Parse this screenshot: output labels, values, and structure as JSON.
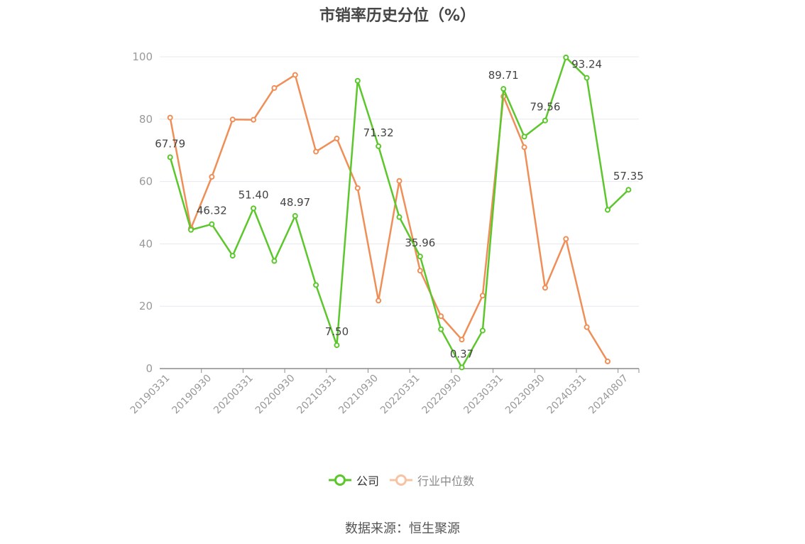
{
  "title": "市销率历史分位（%）",
  "source": "数据来源：恒生聚源",
  "legend": {
    "company": "公司",
    "industry": "行业中位数"
  },
  "colors": {
    "company": "#5cc72c",
    "industry": "#f08e57",
    "axis": "#999999",
    "grid": "#e6e8ee"
  },
  "chart_data": {
    "type": "line",
    "title": "市销率历史分位（%）",
    "ylim": [
      0,
      100
    ],
    "yticks": [
      0,
      20,
      40,
      60,
      80,
      100
    ],
    "x": [
      "20190331",
      "20190630",
      "20190930",
      "20191231",
      "20200331",
      "20200630",
      "20200930",
      "20201231",
      "20210331",
      "20210630",
      "20210930",
      "20211231",
      "20220331",
      "20220630",
      "20220930",
      "20221231",
      "20230331",
      "20230630",
      "20230930",
      "20231231",
      "20240331",
      "20240630",
      "20240807"
    ],
    "xtick_labels": [
      "20190331",
      "20190930",
      "20200331",
      "20200930",
      "20210331",
      "20210930",
      "20220331",
      "20220930",
      "20230331",
      "20230930",
      "20240331",
      "20240807"
    ],
    "grid": true,
    "legend_position": "bottom",
    "series": [
      {
        "name": "公司",
        "values": [
          67.79,
          44.5,
          46.32,
          36.2,
          51.4,
          34.5,
          48.97,
          26.8,
          7.5,
          92.3,
          71.32,
          48.6,
          35.96,
          12.6,
          0.37,
          12.2,
          89.71,
          74.4,
          79.56,
          99.8,
          93.24,
          50.9,
          57.35
        ],
        "labels": [
          "67.79",
          null,
          "46.32",
          null,
          "51.40",
          null,
          "48.97",
          null,
          "7.50",
          null,
          "71.32",
          null,
          "35.96",
          null,
          "0.37",
          null,
          "89.71",
          null,
          "79.56",
          null,
          "93.24",
          null,
          "57.35"
        ]
      },
      {
        "name": "行业中位数",
        "values": [
          80.5,
          45.0,
          61.5,
          79.9,
          79.8,
          90.0,
          94.2,
          69.6,
          73.8,
          57.9,
          21.8,
          60.2,
          31.4,
          16.8,
          9.3,
          23.4,
          87.3,
          71.0,
          25.9,
          41.6,
          13.3,
          2.3,
          null
        ]
      }
    ]
  }
}
